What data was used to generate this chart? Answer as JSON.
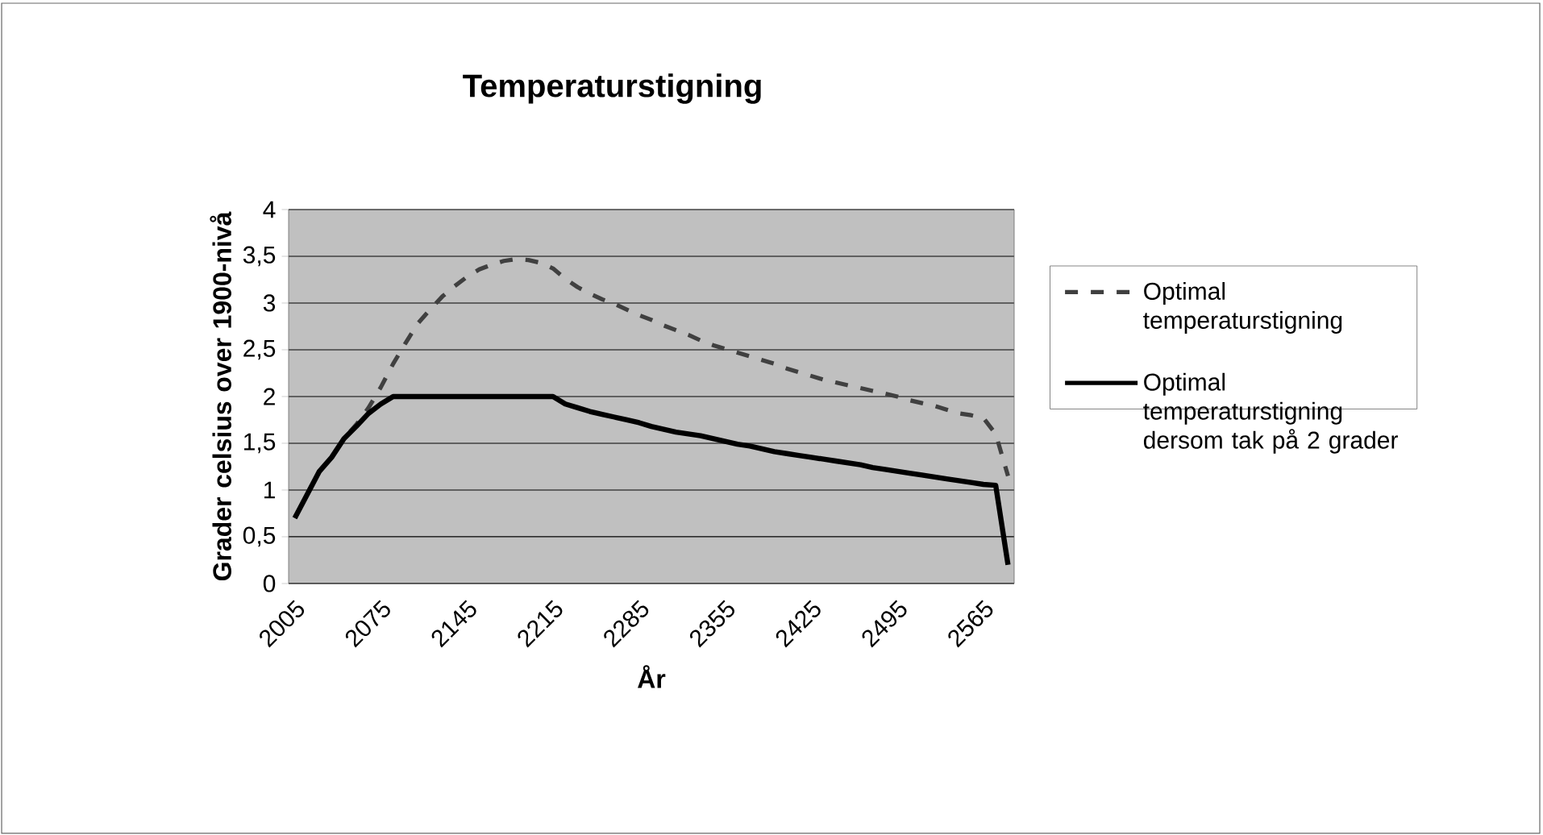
{
  "chart_data": {
    "type": "line",
    "title": "Temperaturstigning",
    "xlabel": "År",
    "ylabel": "Grader celsius over 1900-nivå",
    "categories": [
      "2005",
      null,
      null,
      null,
      null,
      null,
      null,
      "2075",
      null,
      null,
      null,
      null,
      null,
      null,
      "2145",
      null,
      null,
      null,
      null,
      null,
      null,
      "2215",
      null,
      null,
      null,
      null,
      null,
      null,
      "2285",
      null,
      null,
      null,
      null,
      null,
      null,
      "2355",
      null,
      null,
      null,
      null,
      null,
      null,
      "2425",
      null,
      null,
      null,
      null,
      null,
      null,
      "2495",
      null,
      null,
      null,
      null,
      null,
      null,
      "2565",
      null,
      null
    ],
    "series": [
      {
        "name": "Optimal temperaturstigning",
        "color": "#404040",
        "line_style": "dashed",
        "values": [
          0.7,
          0.95,
          1.2,
          1.35,
          1.55,
          1.7,
          1.88,
          2.1,
          2.35,
          2.57,
          2.78,
          2.93,
          3.07,
          3.18,
          3.28,
          3.36,
          3.41,
          3.45,
          3.47,
          3.46,
          3.43,
          3.37,
          3.26,
          3.17,
          3.1,
          3.04,
          2.99,
          2.93,
          2.87,
          2.82,
          2.76,
          2.71,
          2.66,
          2.6,
          2.55,
          2.51,
          2.47,
          2.43,
          2.39,
          2.35,
          2.3,
          2.26,
          2.22,
          2.18,
          2.15,
          2.12,
          2.09,
          2.06,
          2.03,
          2.0,
          1.96,
          1.93,
          1.9,
          1.86,
          1.82,
          1.8,
          1.77,
          1.6,
          1.15
        ]
      },
      {
        "name": "Optimal temperaturstigning dersom tak på 2 grader",
        "color": "#000000",
        "line_style": "solid",
        "values": [
          0.7,
          0.95,
          1.2,
          1.35,
          1.55,
          1.68,
          1.82,
          1.92,
          2.0,
          2.0,
          2.0,
          2.0,
          2.0,
          2.0,
          2.0,
          2.0,
          2.0,
          2.0,
          2.0,
          2.0,
          2.0,
          2.0,
          1.92,
          1.88,
          1.84,
          1.81,
          1.78,
          1.75,
          1.72,
          1.68,
          1.65,
          1.62,
          1.6,
          1.58,
          1.55,
          1.52,
          1.49,
          1.47,
          1.44,
          1.41,
          1.39,
          1.37,
          1.35,
          1.33,
          1.31,
          1.29,
          1.27,
          1.24,
          1.22,
          1.2,
          1.18,
          1.16,
          1.14,
          1.12,
          1.1,
          1.08,
          1.06,
          1.05,
          0.2
        ]
      }
    ],
    "ylim": [
      0,
      4
    ],
    "yticks": [
      0,
      {
        "value": 0.5,
        "label": "0,5"
      },
      1,
      {
        "value": 1.5,
        "label": "1,5"
      },
      2,
      {
        "value": 2.5,
        "label": "2,5"
      },
      3,
      {
        "value": 3.5,
        "label": "3,5"
      },
      4
    ],
    "grid": "y",
    "legend": "right",
    "marker": "none"
  }
}
